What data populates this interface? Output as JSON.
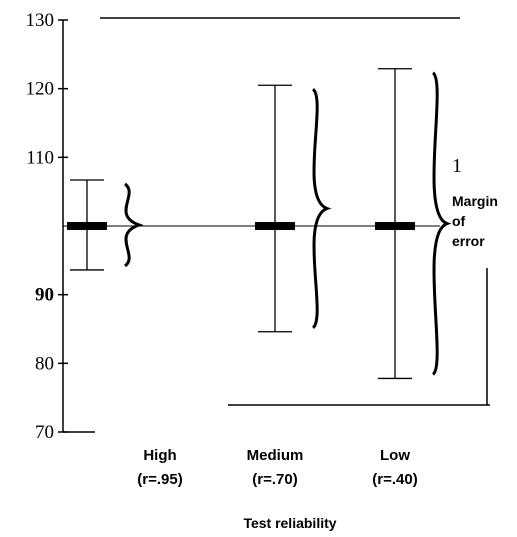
{
  "chart_data": {
    "type": "errorbar",
    "categories": [
      "High",
      "Medium",
      "Low"
    ],
    "reliabilities": [
      "(r=.95)",
      "(r=.70)",
      "(r=.40)"
    ],
    "values": [
      100,
      100,
      100
    ],
    "lower": [
      93.6,
      84.6,
      77.8
    ],
    "upper": [
      106.7,
      120.5,
      122.9
    ],
    "ylim": [
      70,
      130
    ],
    "yticks": [
      70,
      80,
      90,
      110,
      120,
      130
    ],
    "xlabel": "Test reliability",
    "annotations": [
      "1",
      "Margin",
      "of",
      "error"
    ],
    "color": "#000000"
  }
}
